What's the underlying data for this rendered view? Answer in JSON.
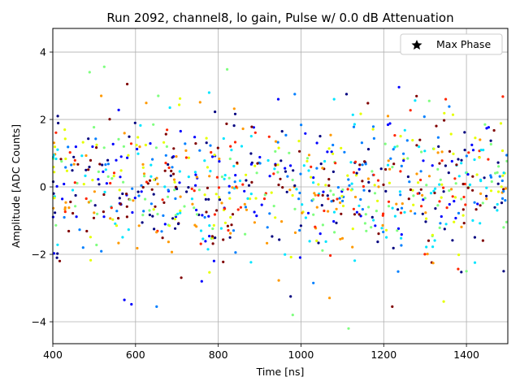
{
  "chart_data": {
    "type": "scatter",
    "title": "Run 2092, channel8, lo gain, Pulse w/ 0.0 dB Attenuation",
    "xlabel": "Time [ns]",
    "ylabel": "Amplitude [ADC Counts]",
    "xlim": [
      400,
      1500
    ],
    "ylim": [
      -4.65,
      4.7
    ],
    "xticks": [
      "400",
      "600",
      "800",
      "1000",
      "1200",
      "1400"
    ],
    "yticks": [
      "−4",
      "−2",
      "0",
      "2",
      "4"
    ],
    "grid": true,
    "legend": {
      "position": "top-right",
      "label": "Max Phase",
      "marker": "star"
    },
    "colormap": [
      "#00007f",
      "#0000ff",
      "#007fff",
      "#00e5ff",
      "#7fff7f",
      "#e5ff00",
      "#ff9900",
      "#ff2600",
      "#7f0000"
    ],
    "point_count": 880,
    "sample_points": [
      [
        412,
        2.1
      ],
      [
        489,
        3.4
      ],
      [
        517,
        2.7
      ],
      [
        580,
        3.05
      ],
      [
        655,
        2.7
      ],
      [
        683,
        2.35
      ],
      [
        945,
        2.6
      ],
      [
        985,
        2.75
      ],
      [
        1080,
        2.6
      ],
      [
        1110,
        2.75
      ],
      [
        1310,
        2.55
      ],
      [
        1350,
        2.6
      ],
      [
        651,
        -3.55
      ],
      [
        573,
        -3.35
      ],
      [
        975,
        -3.25
      ],
      [
        1115,
        -4.2
      ],
      [
        1345,
        -3.4
      ],
      [
        1400,
        -2.5
      ],
      [
        1490,
        -2.5
      ],
      [
        410,
        -2.1
      ],
      [
        1030,
        -2.85
      ],
      [
        760,
        -2.8
      ]
    ]
  }
}
